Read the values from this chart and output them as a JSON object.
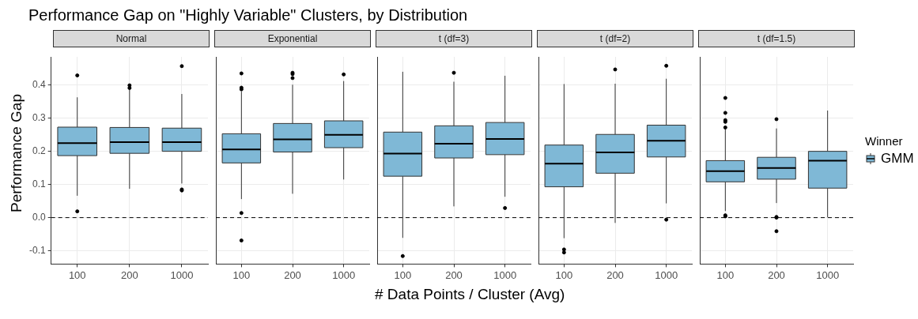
{
  "chart_data": [
    {
      "type": "other",
      "title": "Performance Gap on \"Highly Variable\" Clusters, by Distribution"
    },
    {
      "type": "box",
      "title": "Normal",
      "ylabel": "Performance Gap",
      "categories": [
        "100",
        "200",
        "1000"
      ],
      "ylim": [
        -0.14,
        0.485
      ],
      "yticks": [
        {
          "value": -0.1,
          "label": "-0.1"
        },
        {
          "value": 0,
          "label": "0.0"
        },
        {
          "value": 0.1,
          "label": "0.1"
        },
        {
          "value": 0.2,
          "label": "0.2"
        },
        {
          "value": 0.3,
          "label": "0.3"
        },
        {
          "value": 0.4,
          "label": "0.4"
        }
      ],
      "grid": true,
      "ref_lines": [
        {
          "axis": "y",
          "value": 0,
          "line_style": "dashed",
          "color": "#000000"
        }
      ],
      "series": [
        {
          "color": "#7fb8d6",
          "boxes": [
            {
              "low": 0.066,
              "q1": 0.187,
              "median": 0.225,
              "q3": 0.273,
              "high": 0.363,
              "outliers": [
                0.429,
                0.019
              ]
            },
            {
              "low": 0.087,
              "q1": 0.194,
              "median": 0.228,
              "q3": 0.272,
              "high": 0.385,
              "outliers": [
                0.399,
                0.391
              ]
            },
            {
              "low": 0.103,
              "q1": 0.2,
              "median": 0.228,
              "q3": 0.27,
              "high": 0.373,
              "outliers": [
                0.457,
                0.085,
                0.082
              ]
            }
          ]
        }
      ]
    },
    {
      "type": "box",
      "title": "Exponential",
      "categories": [
        "100",
        "200",
        "1000"
      ],
      "ylim": [
        -0.14,
        0.485
      ],
      "yticks": [
        -0.1,
        0,
        0.1,
        0.2,
        0.3,
        0.4
      ],
      "tick_labels": "x",
      "grid": true,
      "ref_lines": [
        {
          "axis": "y",
          "value": 0,
          "line_style": "dashed",
          "color": "#000000"
        }
      ],
      "series": [
        {
          "color": "#7fb8d6",
          "boxes": [
            {
              "low": 0.056,
              "q1": 0.165,
              "median": 0.206,
              "q3": 0.253,
              "high": 0.38,
              "outliers": [
                0.435,
                0.392,
                0.387,
                0.014,
                -0.069
              ]
            },
            {
              "low": 0.072,
              "q1": 0.198,
              "median": 0.236,
              "q3": 0.284,
              "high": 0.401,
              "outliers": [
                0.437,
                0.433,
                0.421
              ]
            },
            {
              "low": 0.115,
              "q1": 0.211,
              "median": 0.25,
              "q3": 0.292,
              "high": 0.412,
              "outliers": [
                0.432
              ]
            }
          ]
        }
      ]
    },
    {
      "type": "box",
      "title": "t (df=3)",
      "xlabel": "# Data Points / Cluster (Avg)",
      "categories": [
        "100",
        "200",
        "1000"
      ],
      "ylim": [
        -0.14,
        0.485
      ],
      "yticks": [
        -0.1,
        0,
        0.1,
        0.2,
        0.3,
        0.4
      ],
      "tick_labels": "x",
      "grid": true,
      "ref_lines": [
        {
          "axis": "y",
          "value": 0,
          "line_style": "dashed",
          "color": "#000000"
        }
      ],
      "series": [
        {
          "color": "#7fb8d6",
          "boxes": [
            {
              "low": -0.061,
              "q1": 0.125,
              "median": 0.193,
              "q3": 0.258,
              "high": 0.44,
              "outliers": [
                -0.116
              ]
            },
            {
              "low": 0.034,
              "q1": 0.18,
              "median": 0.223,
              "q3": 0.277,
              "high": 0.41,
              "outliers": [
                0.437
              ]
            },
            {
              "low": 0.063,
              "q1": 0.19,
              "median": 0.237,
              "q3": 0.287,
              "high": 0.428,
              "outliers": [
                0.029
              ]
            }
          ]
        }
      ]
    },
    {
      "type": "box",
      "title": "t (df=2)",
      "categories": [
        "100",
        "200",
        "1000"
      ],
      "ylim": [
        -0.14,
        0.485
      ],
      "yticks": [
        -0.1,
        0,
        0.1,
        0.2,
        0.3,
        0.4
      ],
      "tick_labels": "x",
      "grid": true,
      "ref_lines": [
        {
          "axis": "y",
          "value": 0,
          "line_style": "dashed",
          "color": "#000000"
        }
      ],
      "series": [
        {
          "color": "#7fb8d6",
          "boxes": [
            {
              "low": -0.062,
              "q1": 0.093,
              "median": 0.163,
              "q3": 0.219,
              "high": 0.403,
              "outliers": [
                -0.096,
                -0.105
              ]
            },
            {
              "low": -0.016,
              "q1": 0.134,
              "median": 0.197,
              "q3": 0.251,
              "high": 0.404,
              "outliers": [
                0.447
              ]
            },
            {
              "low": 0.043,
              "q1": 0.183,
              "median": 0.232,
              "q3": 0.279,
              "high": 0.419,
              "outliers": [
                0.458,
                -0.006
              ]
            }
          ]
        }
      ]
    },
    {
      "type": "box",
      "title": "t (df=1.5)",
      "legend_title": "Winner",
      "legend": "right",
      "categories": [
        "100",
        "200",
        "1000"
      ],
      "ylim": [
        -0.14,
        0.485
      ],
      "yticks": [
        -0.1,
        0,
        0.1,
        0.2,
        0.3,
        0.4
      ],
      "tick_labels": "x",
      "grid": true,
      "ref_lines": [
        {
          "axis": "y",
          "value": 0,
          "line_style": "dashed",
          "color": "#000000"
        }
      ],
      "series": [
        {
          "name": "GMM",
          "color": "#7fb8d6",
          "boxes": [
            {
              "low": 0.02,
              "q1": 0.108,
              "median": 0.14,
              "q3": 0.172,
              "high": 0.268,
              "outliers": [
                0.361,
                0.316,
                0.294,
                0.289,
                0.272,
                0.007,
                0.004
              ]
            },
            {
              "low": 0.044,
              "q1": 0.116,
              "median": 0.15,
              "q3": 0.182,
              "high": 0.269,
              "outliers": [
                0.297,
                0.002,
                0,
                -0.041
              ]
            },
            {
              "low": 0.001,
              "q1": 0.089,
              "median": 0.172,
              "q3": 0.2,
              "high": 0.323
            }
          ]
        }
      ]
    }
  ]
}
